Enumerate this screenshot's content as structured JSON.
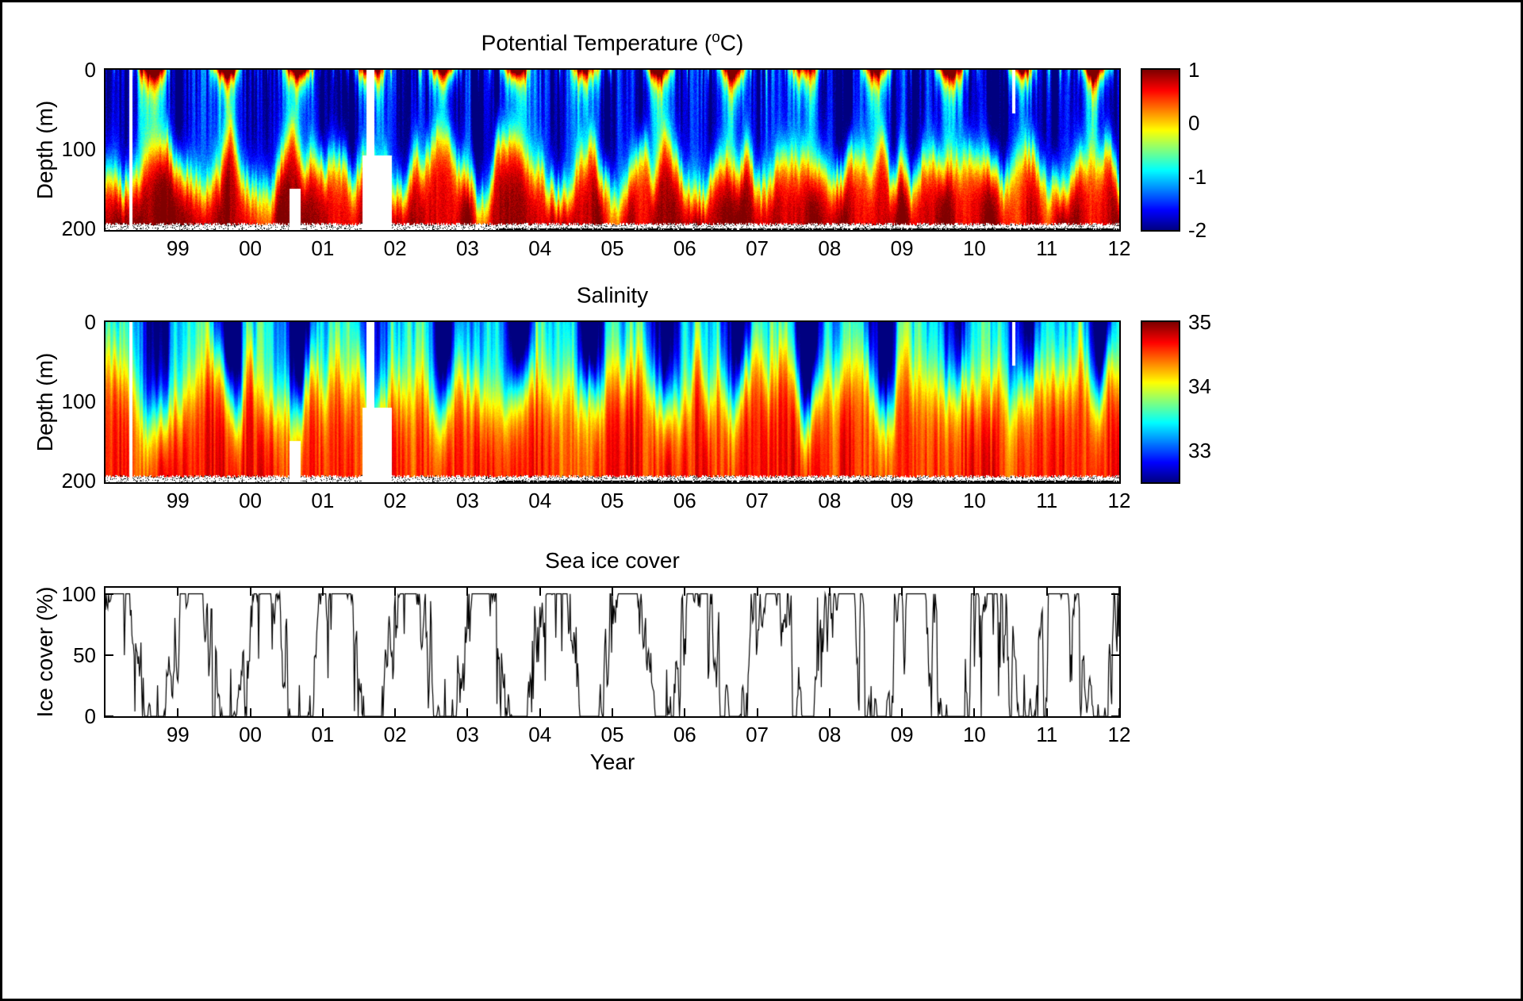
{
  "figure": {
    "background": "#ffffff",
    "frame_color": "#000000"
  },
  "chart_data": [
    {
      "id": "temperature",
      "type": "heatmap",
      "title": {
        "prefix": "Potential Temperature (",
        "sup": "o",
        "suffix": "C)"
      },
      "ylabel": "Depth (m)",
      "x_range": [
        1998,
        2012
      ],
      "x_ticks": [
        {
          "value": 1999,
          "label": "99"
        },
        {
          "value": 2000,
          "label": "00"
        },
        {
          "value": 2001,
          "label": "01"
        },
        {
          "value": 2002,
          "label": "02"
        },
        {
          "value": 2003,
          "label": "03"
        },
        {
          "value": 2004,
          "label": "04"
        },
        {
          "value": 2005,
          "label": "05"
        },
        {
          "value": 2006,
          "label": "06"
        },
        {
          "value": 2007,
          "label": "07"
        },
        {
          "value": 2008,
          "label": "08"
        },
        {
          "value": 2009,
          "label": "09"
        },
        {
          "value": 2010,
          "label": "10"
        },
        {
          "value": 2011,
          "label": "11"
        },
        {
          "value": 2012,
          "label": "12"
        }
      ],
      "y_range": [
        0,
        202
      ],
      "y_ticks": [
        {
          "value": 0,
          "label": "0"
        },
        {
          "value": 100,
          "label": "100"
        },
        {
          "value": 200,
          "label": "200"
        }
      ],
      "colormap": "jet",
      "clim": [
        -2,
        1
      ],
      "colorbar_ticks": [
        {
          "value": 1,
          "label": "1"
        },
        {
          "value": 0,
          "label": "0"
        },
        {
          "value": -1,
          "label": "-1"
        },
        {
          "value": -2,
          "label": "-2"
        }
      ],
      "grid": false,
      "model": {
        "season_phase": 0.4,
        "surface_warm_amp": 2.7,
        "surface_decay_m": 16,
        "cold_layer_temp": -1.85,
        "deep_temp": 0.85,
        "thermocline_depth_m": 122,
        "thermocline_width_m": 17,
        "column_noise": 0.5
      },
      "gaps": [
        {
          "from": 1998.33,
          "to": 1998.37,
          "top": 0,
          "bottom": 202
        },
        {
          "from": 2000.54,
          "to": 2000.7,
          "top": 150,
          "bottom": 202
        },
        {
          "from": 2001.55,
          "to": 2001.95,
          "top": 108,
          "bottom": 202
        },
        {
          "from": 2001.6,
          "to": 2001.71,
          "top": 0,
          "bottom": 202
        },
        {
          "from": 2010.52,
          "to": 2010.56,
          "top": 0,
          "bottom": 55
        }
      ]
    },
    {
      "id": "salinity",
      "type": "heatmap",
      "title": {
        "prefix": "Salinity",
        "sup": "",
        "suffix": ""
      },
      "ylabel": "Depth (m)",
      "x_range": [
        1998,
        2012
      ],
      "x_ticks": [
        {
          "value": 1999,
          "label": "99"
        },
        {
          "value": 2000,
          "label": "00"
        },
        {
          "value": 2001,
          "label": "01"
        },
        {
          "value": 2002,
          "label": "02"
        },
        {
          "value": 2003,
          "label": "03"
        },
        {
          "value": 2004,
          "label": "04"
        },
        {
          "value": 2005,
          "label": "05"
        },
        {
          "value": 2006,
          "label": "06"
        },
        {
          "value": 2007,
          "label": "07"
        },
        {
          "value": 2008,
          "label": "08"
        },
        {
          "value": 2009,
          "label": "09"
        },
        {
          "value": 2010,
          "label": "10"
        },
        {
          "value": 2011,
          "label": "11"
        },
        {
          "value": 2012,
          "label": "12"
        }
      ],
      "y_range": [
        0,
        202
      ],
      "y_ticks": [
        {
          "value": 0,
          "label": "0"
        },
        {
          "value": 100,
          "label": "100"
        },
        {
          "value": 200,
          "label": "200"
        }
      ],
      "colormap": "jet",
      "clim": [
        32.5,
        35
      ],
      "colorbar_ticks": [
        {
          "value": 35,
          "label": "35"
        },
        {
          "value": 34,
          "label": "34"
        },
        {
          "value": 33,
          "label": "33"
        }
      ],
      "grid": false,
      "model": {
        "season_phase": 0.45,
        "fresh_amp": 1.3,
        "surface_sal_winter": 33.35,
        "deep_sal": 34.6,
        "halocline_depth_m": 68,
        "halocline_width_m": 26,
        "column_noise": 0.18
      },
      "gaps": [
        {
          "from": 1998.33,
          "to": 1998.37,
          "top": 0,
          "bottom": 202
        },
        {
          "from": 2000.54,
          "to": 2000.7,
          "top": 150,
          "bottom": 202
        },
        {
          "from": 2001.55,
          "to": 2001.95,
          "top": 108,
          "bottom": 202
        },
        {
          "from": 2001.6,
          "to": 2001.71,
          "top": 0,
          "bottom": 202
        },
        {
          "from": 2010.52,
          "to": 2010.56,
          "top": 0,
          "bottom": 55
        }
      ]
    },
    {
      "id": "ice",
      "type": "line",
      "title": "Sea ice cover",
      "ylabel": "Ice cover (%)",
      "xlabel": "Year",
      "x_range": [
        1998,
        2012
      ],
      "x_ticks": [
        {
          "value": 1999,
          "label": "99"
        },
        {
          "value": 2000,
          "label": "00"
        },
        {
          "value": 2001,
          "label": "01"
        },
        {
          "value": 2002,
          "label": "02"
        },
        {
          "value": 2003,
          "label": "03"
        },
        {
          "value": 2004,
          "label": "04"
        },
        {
          "value": 2005,
          "label": "05"
        },
        {
          "value": 2006,
          "label": "06"
        },
        {
          "value": 2007,
          "label": "07"
        },
        {
          "value": 2008,
          "label": "08"
        },
        {
          "value": 2009,
          "label": "09"
        },
        {
          "value": 2010,
          "label": "10"
        },
        {
          "value": 2011,
          "label": "11"
        },
        {
          "value": 2012,
          "label": "12"
        }
      ],
      "y_range": [
        0,
        105
      ],
      "y_ticks": [
        {
          "value": 0,
          "label": "0"
        },
        {
          "value": 50,
          "label": "50"
        },
        {
          "value": 100,
          "label": "100"
        }
      ],
      "line_color": "#000000",
      "grid": false,
      "model": {
        "mean": 50,
        "seasonal_amp": 68,
        "season_phase": 0.45,
        "noise_amp": 38,
        "samples_per_year": 96
      }
    }
  ]
}
